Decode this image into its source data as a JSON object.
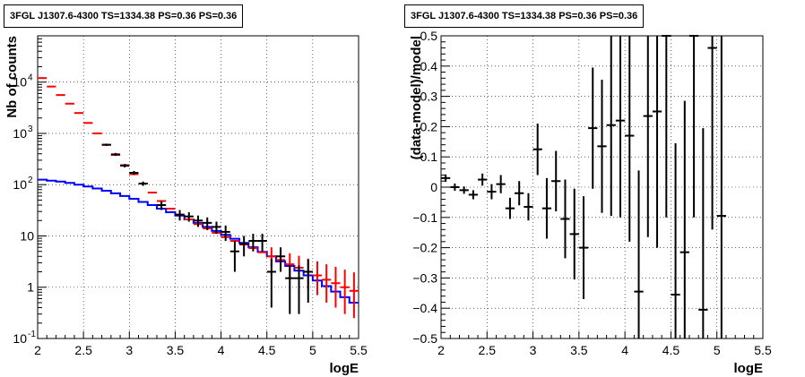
{
  "chart_data": [
    {
      "type": "scatter",
      "title": "3FGL J1307.6-4300 TS=1334.38 PS=0.36 PS=0.36",
      "xlabel": "logE",
      "ylabel": "Nb of counts",
      "xlim": [
        2,
        5.5
      ],
      "ylim": [
        0.1,
        80000
      ],
      "yscale": "log",
      "grid": true,
      "x_ticks": [
        "2",
        "2.5",
        "3",
        "3.5",
        "4",
        "4.5",
        "5",
        "5.5"
      ],
      "y_ticks": [
        "10^-1",
        "1",
        "10",
        "10^2",
        "10^3",
        "10^4"
      ],
      "series": [
        {
          "color": "#ff0000",
          "x": [
            2.05,
            2.15,
            2.25,
            2.35,
            2.45,
            2.55,
            2.65,
            2.75,
            2.85,
            2.95,
            3.05,
            3.15,
            3.25,
            3.35,
            3.45,
            3.55,
            3.65,
            3.75,
            3.85,
            3.95,
            4.05,
            4.15,
            4.25,
            4.35,
            4.45,
            4.55,
            4.65,
            4.75,
            4.85,
            4.95,
            5.05,
            5.15,
            5.25,
            5.35,
            5.45
          ],
          "y": [
            12000,
            8200,
            5600,
            3800,
            2500,
            1600,
            1000,
            600,
            380,
            240,
            160,
            105,
            70,
            48,
            34,
            26,
            21,
            17,
            14,
            11.5,
            9.5,
            8,
            6.8,
            5.8,
            4.8,
            4,
            3.4,
            2.8,
            2.4,
            2,
            1.7,
            1.4,
            1.2,
            1,
            0.85
          ],
          "err_low": [
            0,
            0,
            0,
            0,
            0,
            0,
            0,
            0,
            0,
            0,
            0,
            0,
            0,
            0,
            0,
            0,
            0,
            0,
            0,
            0,
            0,
            0,
            0,
            0,
            0,
            1.5,
            1.4,
            1.3,
            1.2,
            1.1,
            1.0,
            0.9,
            0.8,
            0.7,
            0.6
          ],
          "err_high": [
            0,
            0,
            0,
            0,
            0,
            0,
            0,
            0,
            0,
            0,
            0,
            0,
            0,
            0,
            0,
            0,
            0,
            0,
            0,
            0,
            0,
            0,
            0,
            0,
            0,
            2,
            1.9,
            1.8,
            1.7,
            1.6,
            1.5,
            1.4,
            1.3,
            1.2,
            1.1
          ]
        },
        {
          "color": "#000000",
          "x": [
            2.75,
            2.85,
            2.95,
            3.05,
            3.15,
            3.35,
            3.55,
            3.65,
            3.75,
            3.85,
            3.95,
            4.05,
            4.15,
            4.25,
            4.35,
            4.45,
            4.55,
            4.65,
            4.75,
            4.85,
            4.95
          ],
          "y": [
            600,
            390,
            235,
            170,
            105,
            40,
            26,
            24,
            20,
            18,
            15,
            12,
            5,
            7,
            8,
            8,
            2,
            4,
            1.5,
            1.5,
            2
          ],
          "err_low": [
            30,
            25,
            18,
            15,
            10,
            8,
            6,
            5,
            5,
            5,
            4,
            4,
            3,
            3,
            3,
            3,
            1.6,
            2,
            1.2,
            1.2,
            1.5
          ],
          "err_high": [
            30,
            25,
            18,
            15,
            10,
            8,
            6,
            5,
            5,
            5,
            4,
            4,
            3,
            3,
            3,
            3,
            1.6,
            2,
            1.2,
            1.2,
            1.5
          ]
        },
        {
          "color": "#0000ff",
          "drawstyle": "steps",
          "x": [
            2.0,
            2.1,
            2.2,
            2.3,
            2.4,
            2.5,
            2.6,
            2.7,
            2.8,
            2.9,
            3.0,
            3.1,
            3.2,
            3.3,
            3.4,
            3.5,
            3.6,
            3.7,
            3.8,
            3.9,
            4.0,
            4.1,
            4.2,
            4.3,
            4.4,
            4.5,
            4.6,
            4.7,
            4.8,
            4.9,
            5.0,
            5.1,
            5.2,
            5.3,
            5.4
          ],
          "y": [
            125,
            120,
            115,
            108,
            100,
            92,
            84,
            76,
            68,
            60,
            53,
            46,
            40,
            34,
            29,
            25,
            21,
            18,
            15,
            12.5,
            10.5,
            8.8,
            7.3,
            6.0,
            4.9,
            4.0,
            3.2,
            2.6,
            2.1,
            1.7,
            1.35,
            1.05,
            0.82,
            0.64,
            0.5
          ]
        }
      ]
    },
    {
      "type": "scatter",
      "title": "3FGL J1307.6-4300 TS=1334.38 PS=0.36 PS=0.36",
      "xlabel": "logE",
      "ylabel": "(data-model)/model",
      "xlim": [
        2,
        5.5
      ],
      "ylim": [
        -0.5,
        0.5
      ],
      "grid": true,
      "x_ticks": [
        "2",
        "2.5",
        "3",
        "3.5",
        "4",
        "4.5",
        "5",
        "5.5"
      ],
      "y_ticks": [
        "-0.5",
        "-0.4",
        "-0.3",
        "-0.2",
        "-0.1",
        "0",
        "0.1",
        "0.2",
        "0.3",
        "0.4",
        "0.5"
      ],
      "series": [
        {
          "color": "#000000",
          "x": [
            2.05,
            2.15,
            2.25,
            2.35,
            2.45,
            2.55,
            2.65,
            2.75,
            2.85,
            2.95,
            3.05,
            3.15,
            3.25,
            3.35,
            3.45,
            3.55,
            3.65,
            3.75,
            3.85,
            3.95,
            4.05,
            4.15,
            4.25,
            4.35,
            4.45,
            4.55,
            4.65,
            4.75,
            4.85,
            4.95,
            5.05
          ],
          "y": [
            0.03,
            0.0,
            -0.01,
            -0.025,
            0.025,
            -0.015,
            0.01,
            -0.07,
            -0.02,
            -0.065,
            0.125,
            -0.07,
            0.02,
            -0.105,
            -0.155,
            -0.2,
            0.195,
            0.135,
            0.205,
            0.22,
            0.17,
            -0.345,
            0.235,
            0.25,
            0.5,
            -0.355,
            -0.215,
            0.5,
            -0.405,
            0.46,
            -0.095
          ],
          "err": [
            0.012,
            0.012,
            0.012,
            0.015,
            0.02,
            0.025,
            0.03,
            0.035,
            0.04,
            0.045,
            0.085,
            0.1,
            0.1,
            0.13,
            0.15,
            0.17,
            0.2,
            0.22,
            0.3,
            0.32,
            0.35,
            0.4,
            0.4,
            0.45,
            0.6,
            0.5,
            0.5,
            0.6,
            0.6,
            0.6,
            0.6
          ]
        }
      ]
    }
  ]
}
